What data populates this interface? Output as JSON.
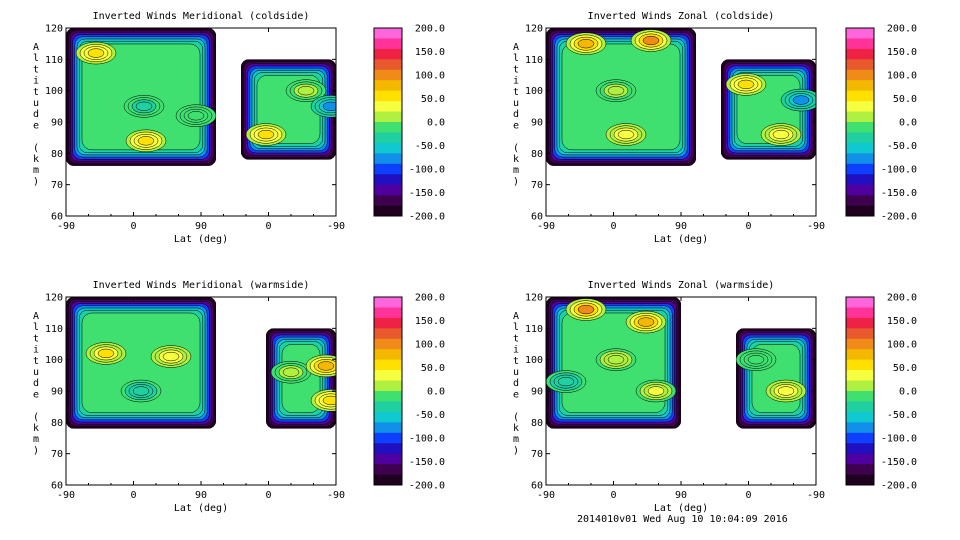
{
  "footer": "2014010v01 Wed Aug 10 10:04:09 2016",
  "colorbar": {
    "labels": [
      "200.0",
      "150.0",
      "100.0",
      "50.0",
      "0.0",
      "-50.0",
      "-100.0",
      "-150.0",
      "-200.0"
    ],
    "colors": [
      "#ff66dd",
      "#ff3399",
      "#ee2244",
      "#e85a2e",
      "#f08a18",
      "#f5b800",
      "#ffe000",
      "#f6ff40",
      "#b0f040",
      "#40e070",
      "#20d0a0",
      "#10c8d0",
      "#1090e8",
      "#1040ff",
      "#2010c0",
      "#5000a0",
      "#400050",
      "#200020"
    ]
  },
  "chart_data": [
    {
      "type": "heatmap",
      "title": "Inverted Winds Meridional (coldside)",
      "xlabel": "Lat (deg)",
      "ylabel": "Altitude (km)",
      "xticks": [
        "-90",
        "0",
        "90",
        "0",
        "-90"
      ],
      "yticks": [
        "120",
        "110",
        "100",
        "90",
        "80",
        "70",
        "60"
      ],
      "ylim": [
        60,
        120
      ],
      "zlim": [
        -200,
        200
      ],
      "regions": [
        {
          "lat": [
            -90,
            60
          ],
          "alt": [
            76,
            120
          ]
        },
        {
          "lat": [
            85,
            180
          ],
          "alt": [
            78,
            110
          ]
        }
      ],
      "features": [
        {
          "lat": -60,
          "alt": 112,
          "value": 55
        },
        {
          "lat": -12,
          "alt": 95,
          "value": -30
        },
        {
          "lat": -10,
          "alt": 84,
          "value": 60
        },
        {
          "lat": 40,
          "alt": 92,
          "value": -5
        },
        {
          "lat": 110,
          "alt": 86,
          "value": 55
        },
        {
          "lat": 150,
          "alt": 100,
          "value": 10
        },
        {
          "lat": 175,
          "alt": 95,
          "value": -70
        }
      ]
    },
    {
      "type": "heatmap",
      "title": "Inverted Winds Zonal (coldside)",
      "xlabel": "Lat (deg)",
      "ylabel": "Altitude (km)",
      "xticks": [
        "-90",
        "0",
        "90",
        "0",
        "-90"
      ],
      "yticks": [
        "120",
        "110",
        "100",
        "90",
        "80",
        "70",
        "60"
      ],
      "ylim": [
        60,
        120
      ],
      "zlim": [
        -200,
        200
      ],
      "regions": [
        {
          "lat": [
            -90,
            60
          ],
          "alt": [
            76,
            120
          ]
        },
        {
          "lat": [
            85,
            180
          ],
          "alt": [
            78,
            110
          ]
        }
      ],
      "features": [
        {
          "lat": -50,
          "alt": 115,
          "value": 80
        },
        {
          "lat": 15,
          "alt": 116,
          "value": 90
        },
        {
          "lat": -20,
          "alt": 100,
          "value": 5
        },
        {
          "lat": -10,
          "alt": 86,
          "value": 35
        },
        {
          "lat": 110,
          "alt": 102,
          "value": 60
        },
        {
          "lat": 165,
          "alt": 97,
          "value": -70
        },
        {
          "lat": 145,
          "alt": 86,
          "value": 40
        }
      ]
    },
    {
      "type": "heatmap",
      "title": "Inverted Winds Meridional (warmside)",
      "xlabel": "Lat (deg)",
      "ylabel": "Altitude (km)",
      "xticks": [
        "-90",
        "0",
        "90",
        "0",
        "-90"
      ],
      "yticks": [
        "120",
        "110",
        "100",
        "90",
        "80",
        "70",
        "60"
      ],
      "ylim": [
        60,
        120
      ],
      "zlim": [
        -200,
        200
      ],
      "regions": [
        {
          "lat": [
            -90,
            60
          ],
          "alt": [
            78,
            120
          ]
        },
        {
          "lat": [
            110,
            180
          ],
          "alt": [
            78,
            110
          ]
        }
      ],
      "features": [
        {
          "lat": -50,
          "alt": 102,
          "value": 50
        },
        {
          "lat": 15,
          "alt": 101,
          "value": 40
        },
        {
          "lat": -15,
          "alt": 90,
          "value": -40
        },
        {
          "lat": 135,
          "alt": 96,
          "value": 10
        },
        {
          "lat": 170,
          "alt": 98,
          "value": 70
        },
        {
          "lat": 175,
          "alt": 87,
          "value": 55
        }
      ]
    },
    {
      "type": "heatmap",
      "title": "Inverted Winds Zonal (warmside)",
      "xlabel": "Lat (deg)",
      "ylabel": "Altitude (km)",
      "xticks": [
        "-90",
        "0",
        "90",
        "0",
        "-90"
      ],
      "yticks": [
        "120",
        "110",
        "100",
        "90",
        "80",
        "70",
        "60"
      ],
      "ylim": [
        60,
        120
      ],
      "zlim": [
        -200,
        200
      ],
      "regions": [
        {
          "lat": [
            -90,
            45
          ],
          "alt": [
            78,
            120
          ]
        },
        {
          "lat": [
            100,
            180
          ],
          "alt": [
            78,
            110
          ]
        }
      ],
      "features": [
        {
          "lat": -50,
          "alt": 116,
          "value": 90
        },
        {
          "lat": 10,
          "alt": 112,
          "value": 70
        },
        {
          "lat": -20,
          "alt": 100,
          "value": 20
        },
        {
          "lat": -70,
          "alt": 93,
          "value": -40
        },
        {
          "lat": 20,
          "alt": 90,
          "value": 30
        },
        {
          "lat": 150,
          "alt": 90,
          "value": 40
        },
        {
          "lat": 120,
          "alt": 100,
          "value": 0
        }
      ]
    }
  ]
}
